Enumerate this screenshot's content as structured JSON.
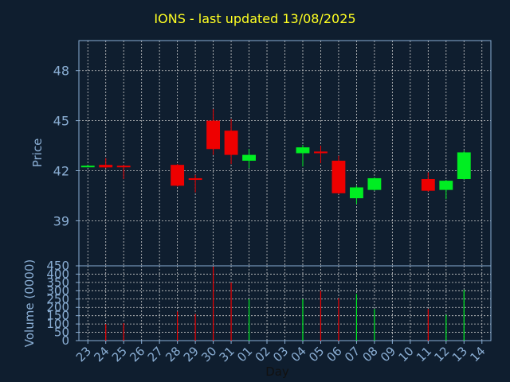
{
  "title": "IONS - last updated 13/08/2025",
  "colors": {
    "background": "#0f1e2f",
    "axis_text": "#8aaed4",
    "title": "#ffff22",
    "up": "#00ee22",
    "down": "#ee0000",
    "grid": "#cccccc"
  },
  "chart_data": [
    {
      "type": "candlestick",
      "ylabel": "Price",
      "ylim": [
        36.3,
        49.8
      ],
      "yticks": [
        39,
        42,
        45,
        48
      ],
      "ytick_labels": [
        "39",
        "42",
        "45",
        "48"
      ],
      "grid": true,
      "x_tick_labels": [
        "23",
        "24",
        "25",
        "26",
        "27",
        "28",
        "29",
        "30",
        "31",
        "01",
        "02",
        "03",
        "04",
        "05",
        "06",
        "07",
        "08",
        "09",
        "10",
        "11",
        "12",
        "13",
        "14"
      ],
      "candles": [
        {
          "day": "23",
          "open": 42.25,
          "close": 42.3,
          "high": 42.35,
          "low": 42.2
        },
        {
          "day": "24",
          "open": 42.35,
          "close": 42.2,
          "high": 42.75,
          "low": 42.15
        },
        {
          "day": "25",
          "open": 42.3,
          "close": 42.25,
          "high": 42.35,
          "low": 41.5
        },
        {
          "day": "28",
          "open": 42.35,
          "close": 41.1,
          "high": 42.4,
          "low": 41.05
        },
        {
          "day": "29",
          "open": 41.55,
          "close": 41.45,
          "high": 41.75,
          "low": 40.7
        },
        {
          "day": "30",
          "open": 45.0,
          "close": 43.3,
          "high": 45.7,
          "low": 42.95
        },
        {
          "day": "31",
          "open": 44.4,
          "close": 42.95,
          "high": 45.1,
          "low": 42.4
        },
        {
          "day": "01",
          "open": 42.6,
          "close": 42.95,
          "high": 43.3,
          "low": 42.15
        },
        {
          "day": "04",
          "open": 43.05,
          "close": 43.4,
          "high": 43.55,
          "low": 42.25
        },
        {
          "day": "05",
          "open": 43.15,
          "close": 43.05,
          "high": 43.5,
          "low": 42.45
        },
        {
          "day": "06",
          "open": 42.6,
          "close": 40.65,
          "high": 42.9,
          "low": 40.6
        },
        {
          "day": "07",
          "open": 40.35,
          "close": 41.0,
          "high": 41.1,
          "low": 40.0
        },
        {
          "day": "08",
          "open": 40.85,
          "close": 41.55,
          "high": 41.6,
          "low": 40.8
        },
        {
          "day": "11",
          "open": 41.5,
          "close": 40.8,
          "high": 41.9,
          "low": 40.75
        },
        {
          "day": "12",
          "open": 40.85,
          "close": 41.4,
          "high": 41.45,
          "low": 40.3
        },
        {
          "day": "13",
          "open": 41.5,
          "close": 43.1,
          "high": 43.2,
          "low": 41.45
        }
      ]
    },
    {
      "type": "bar",
      "ylabel": "Volume (0000)",
      "xlabel": "Day",
      "ylim": [
        0,
        450
      ],
      "yticks": [
        0,
        50,
        100,
        150,
        200,
        250,
        300,
        350,
        400,
        450
      ],
      "ytick_labels": [
        "0",
        "50",
        "100",
        "150",
        "200",
        "250",
        "300",
        "350",
        "400",
        "450"
      ],
      "grid": true,
      "bars": [
        {
          "day": "24",
          "value": 100,
          "color": "down"
        },
        {
          "day": "25",
          "value": 105,
          "color": "down"
        },
        {
          "day": "28",
          "value": 175,
          "color": "down"
        },
        {
          "day": "29",
          "value": 160,
          "color": "down"
        },
        {
          "day": "30",
          "value": 445,
          "color": "down"
        },
        {
          "day": "31",
          "value": 350,
          "color": "down"
        },
        {
          "day": "01",
          "value": 250,
          "color": "up"
        },
        {
          "day": "04",
          "value": 250,
          "color": "up"
        },
        {
          "day": "05",
          "value": 300,
          "color": "down"
        },
        {
          "day": "06",
          "value": 255,
          "color": "down"
        },
        {
          "day": "07",
          "value": 280,
          "color": "up"
        },
        {
          "day": "08",
          "value": 190,
          "color": "up"
        },
        {
          "day": "11",
          "value": 190,
          "color": "down"
        },
        {
          "day": "12",
          "value": 155,
          "color": "up"
        },
        {
          "day": "13",
          "value": 305,
          "color": "up"
        }
      ]
    }
  ]
}
